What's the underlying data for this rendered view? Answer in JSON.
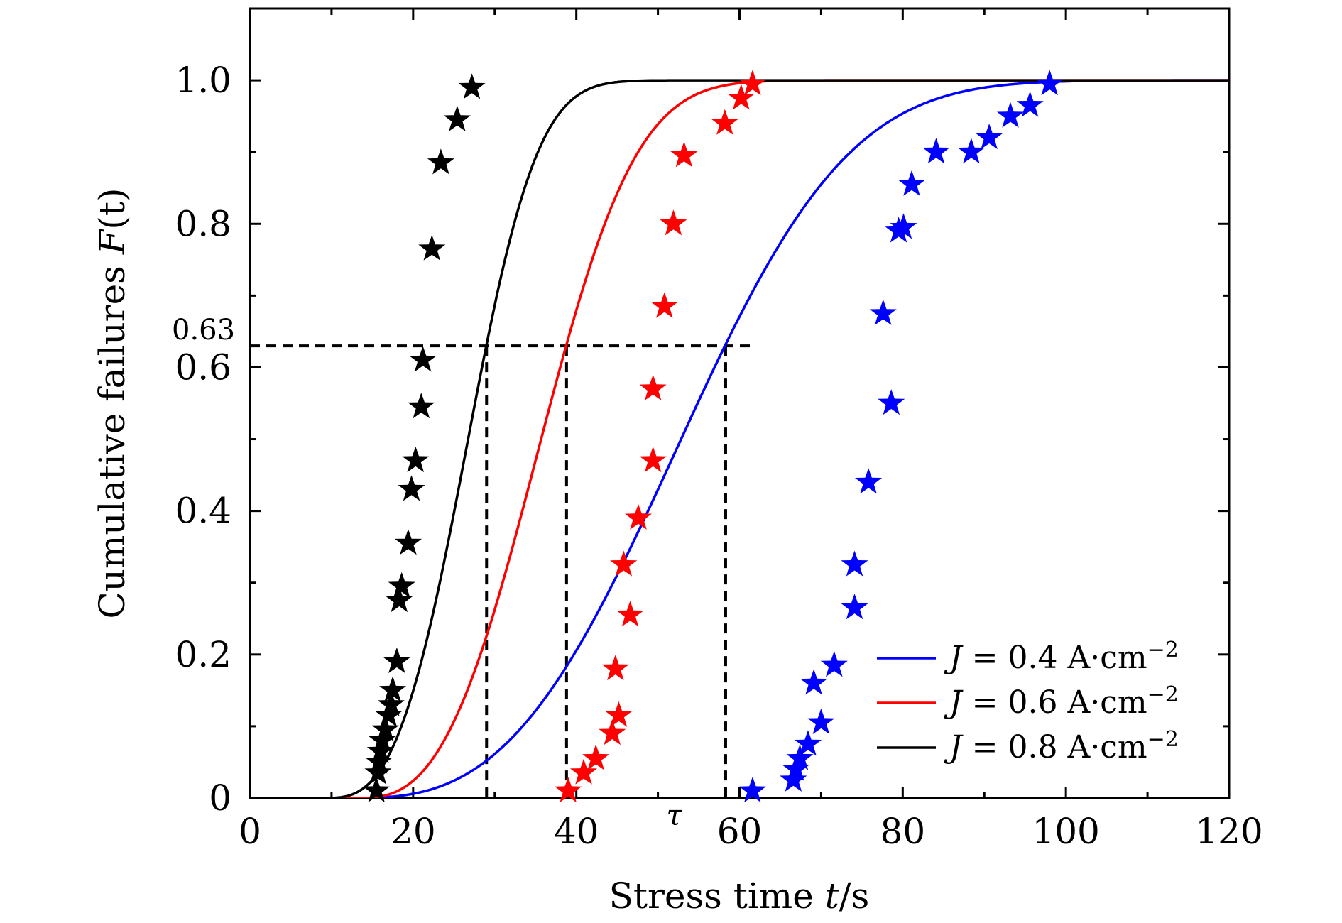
{
  "chart_data": {
    "type": "scatter+line",
    "title": "",
    "xlabel": {
      "prefix": "Stress time ",
      "var": "t",
      "suffix": "/s"
    },
    "ylabel": {
      "prefix": "Cumulative failures ",
      "var": "F",
      "suffix": "(t)"
    },
    "xlim": [
      0,
      120
    ],
    "ylim": [
      0,
      1.1
    ],
    "xticks": [
      0,
      20,
      40,
      60,
      80,
      100,
      120
    ],
    "xtick_labels": [
      "0",
      "20",
      "40",
      "60",
      "80",
      "100",
      "120"
    ],
    "yticks": [
      0,
      0.2,
      0.4,
      0.6,
      0.8,
      1.0
    ],
    "ytick_labels": [
      "0",
      "0.2",
      "0.4",
      "0.6",
      "0.8",
      "1.0"
    ],
    "minor_xticks": [
      10,
      30,
      50,
      70,
      90,
      110
    ],
    "minor_yticks": [
      0.1,
      0.3,
      0.5,
      0.7,
      0.9
    ],
    "grid": false,
    "legend_position": "bottom-right",
    "annotations": {
      "level": 0.63,
      "level_label": "0.63",
      "tau_label": "τ",
      "tau_x": 52,
      "guide_x_end": 62,
      "drop_lines_x": [
        29,
        38.8,
        58.3
      ]
    },
    "series": [
      {
        "name": "J = 0.4 A·cm−2",
        "label_parts": {
          "j": "J",
          "eq": " = 0.4 A·cm",
          "sup": "−2"
        },
        "color": "#0000ff",
        "curve": {
          "model": "weibull",
          "t0": 12,
          "eta": 46.3,
          "beta": 2.92
        },
        "points": [
          [
            61.6,
            0.01
          ],
          [
            66.6,
            0.025
          ],
          [
            66.9,
            0.04
          ],
          [
            67.4,
            0.055
          ],
          [
            68.4,
            0.075
          ],
          [
            70.0,
            0.105
          ],
          [
            69.1,
            0.16
          ],
          [
            71.6,
            0.185
          ],
          [
            74.1,
            0.265
          ],
          [
            74.1,
            0.325
          ],
          [
            75.8,
            0.44
          ],
          [
            78.6,
            0.55
          ],
          [
            77.6,
            0.675
          ],
          [
            79.5,
            0.79
          ],
          [
            80.1,
            0.795
          ],
          [
            81.1,
            0.855
          ],
          [
            84.1,
            0.9
          ],
          [
            88.4,
            0.9
          ],
          [
            90.6,
            0.92
          ],
          [
            93.2,
            0.95
          ],
          [
            95.6,
            0.965
          ],
          [
            98.0,
            0.995
          ]
        ]
      },
      {
        "name": "J = 0.6 A·cm−2",
        "label_parts": {
          "j": "J",
          "eq": " = 0.6 A·cm",
          "sup": "−2"
        },
        "color": "#ff0000",
        "curve": {
          "model": "weibull",
          "t0": 13,
          "eta": 25.8,
          "beta": 2.85
        },
        "points": [
          [
            39.0,
            0.01
          ],
          [
            40.9,
            0.035
          ],
          [
            42.4,
            0.055
          ],
          [
            44.4,
            0.09
          ],
          [
            45.2,
            0.115
          ],
          [
            44.8,
            0.18
          ],
          [
            46.6,
            0.255
          ],
          [
            45.8,
            0.325
          ],
          [
            47.6,
            0.39
          ],
          [
            49.4,
            0.47
          ],
          [
            49.4,
            0.57
          ],
          [
            50.8,
            0.685
          ],
          [
            51.9,
            0.8
          ],
          [
            53.2,
            0.895
          ],
          [
            58.2,
            0.94
          ],
          [
            60.2,
            0.975
          ],
          [
            61.6,
            0.995
          ]
        ]
      },
      {
        "name": "J = 0.8 A·cm−2",
        "label_parts": {
          "j": "J",
          "eq": " = 0.8 A·cm",
          "sup": "−2"
        },
        "color": "#000000",
        "curve": {
          "model": "weibull",
          "t0": 9,
          "eta": 20.0,
          "beta": 3.05
        },
        "points": [
          [
            15.5,
            0.01
          ],
          [
            15.7,
            0.035
          ],
          [
            15.8,
            0.05
          ],
          [
            16.0,
            0.065
          ],
          [
            16.2,
            0.08
          ],
          [
            16.6,
            0.095
          ],
          [
            17.0,
            0.115
          ],
          [
            17.3,
            0.13
          ],
          [
            17.5,
            0.15
          ],
          [
            18.0,
            0.19
          ],
          [
            18.3,
            0.275
          ],
          [
            18.6,
            0.295
          ],
          [
            19.4,
            0.355
          ],
          [
            19.8,
            0.43
          ],
          [
            20.3,
            0.47
          ],
          [
            21.0,
            0.545
          ],
          [
            21.2,
            0.61
          ],
          [
            22.3,
            0.765
          ],
          [
            23.4,
            0.885
          ],
          [
            25.4,
            0.945
          ],
          [
            27.2,
            0.99
          ]
        ]
      }
    ]
  }
}
